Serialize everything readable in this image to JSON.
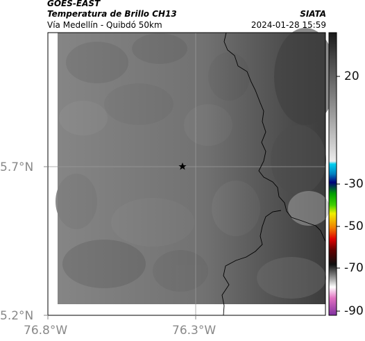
{
  "header": {
    "satellite": "GOES-EAST",
    "product": "Temperatura de Brillo CH13",
    "region": "Vía Medellín - Quibdó 50km",
    "agency": "SIATA",
    "timestamp": "2024-01-28 15:59"
  },
  "map": {
    "lat_ticks": [
      "5.7°N",
      "5.2°N"
    ],
    "lon_ticks": [
      "76.8°W",
      "76.3°W"
    ],
    "marker": "star-icon"
  },
  "colorbar": {
    "ticks": [
      "20",
      "-30",
      "-50",
      "-70",
      "-90"
    ],
    "colors": {
      "dark_gray": "#2a2a2a",
      "light_gray": "#d8d8d8",
      "cyan": "#00c8e8",
      "blue": "#0000a0",
      "green": "#00c000",
      "yellow": "#f0f000",
      "red": "#e00000",
      "black": "#101010",
      "pink": "#e070c0",
      "purple": "#8030a0"
    }
  }
}
